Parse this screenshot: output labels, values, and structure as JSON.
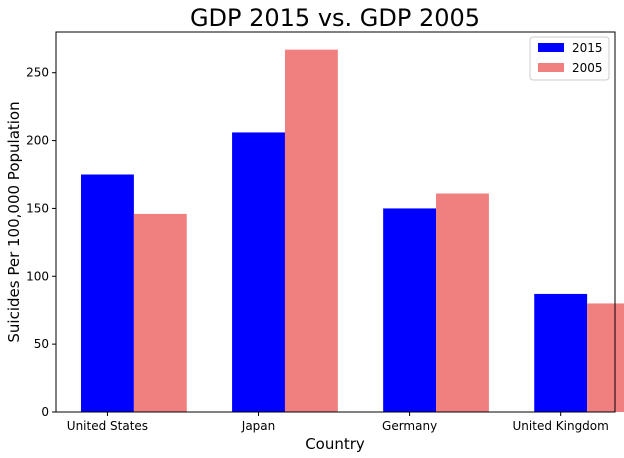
{
  "chart_data": {
    "type": "bar",
    "title": "GDP 2015 vs. GDP 2005",
    "xlabel": "Country",
    "ylabel": "Suicides Per 100,000 Population",
    "categories": [
      "United States",
      "Japan",
      "Germany",
      "United Kingdom"
    ],
    "series": [
      {
        "name": "2015",
        "values": [
          175,
          206,
          150,
          87
        ],
        "color": "#0000ff"
      },
      {
        "name": "2005",
        "values": [
          146,
          267,
          161,
          80
        ],
        "color": "#f08080"
      }
    ],
    "ylim": [
      0,
      280
    ],
    "yticks": [
      0,
      50,
      100,
      150,
      200,
      250
    ],
    "grid": false,
    "legend_position": "top-right"
  }
}
